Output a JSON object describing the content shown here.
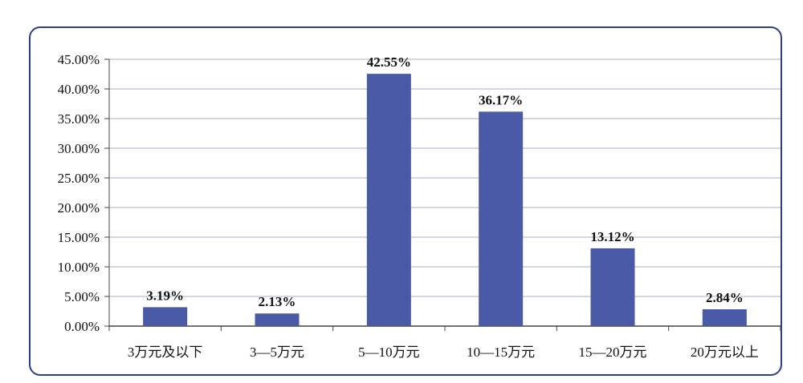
{
  "chart_data": {
    "type": "bar",
    "categories": [
      "3万元及以下",
      "3—5万元",
      "5—10万元",
      "10—15万元",
      "15—20万元",
      "20万元以上"
    ],
    "values": [
      3.19,
      2.13,
      42.55,
      36.17,
      13.12,
      2.84
    ],
    "data_labels": [
      "3.19%",
      "2.13%",
      "42.55%",
      "36.17%",
      "13.12%",
      "2.84%"
    ],
    "y_ticks": [
      "0.00%",
      "5.00%",
      "10.00%",
      "15.00%",
      "20.00%",
      "25.00%",
      "30.00%",
      "35.00%",
      "40.00%",
      "45.00%"
    ],
    "ylim": [
      0,
      45
    ],
    "grid": true,
    "bar_color": "#4a5aa6",
    "grid_color": "#a8acc4",
    "frame_color": "#2a3f8f",
    "title": "",
    "xlabel": "",
    "ylabel": ""
  }
}
